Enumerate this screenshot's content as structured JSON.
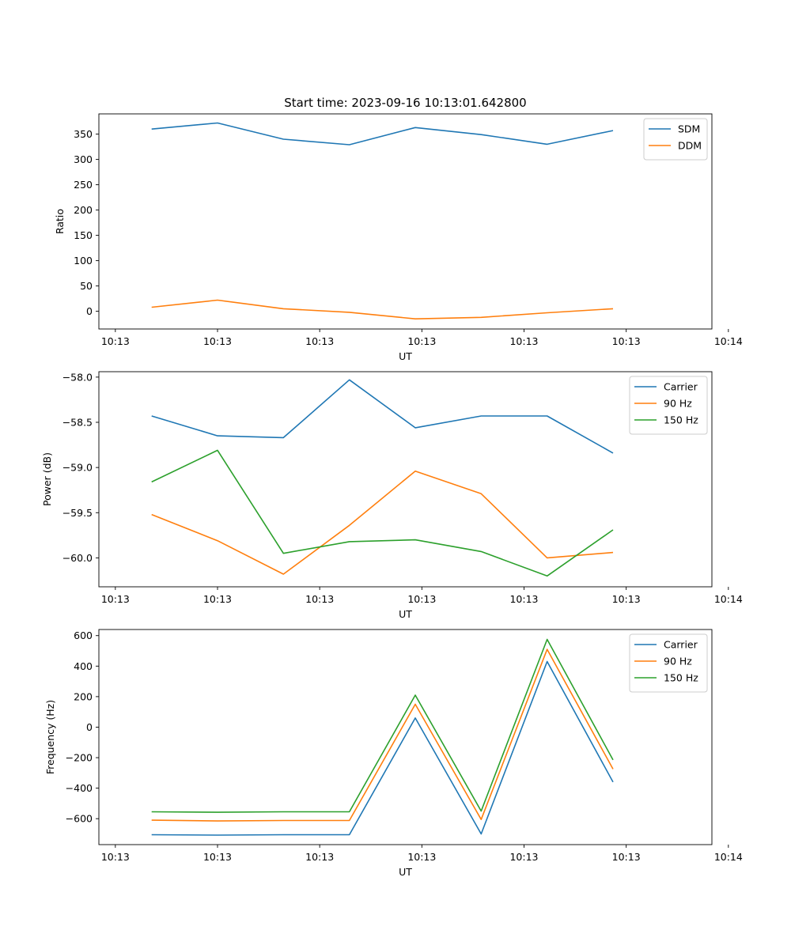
{
  "chart_data": [
    {
      "type": "line",
      "title": "Start time: 2023-09-16 10:13:01.642800",
      "xlabel": "UT",
      "ylabel": "Ratio",
      "x": [
        1,
        2,
        3,
        4,
        5,
        6,
        7,
        8
      ],
      "xlim": [
        0.2,
        9.5
      ],
      "xticks": [
        0.45,
        2.0,
        3.55,
        5.1,
        6.65,
        8.2,
        9.75
      ],
      "xtick_labels": [
        "10:13",
        "10:13",
        "10:13",
        "10:13",
        "10:13",
        "10:13",
        "10:14"
      ],
      "ylim": [
        -35,
        390
      ],
      "yticks": [
        0,
        50,
        100,
        150,
        200,
        250,
        300,
        350
      ],
      "ytick_labels": [
        "0",
        "50",
        "100",
        "150",
        "200",
        "250",
        "300",
        "350"
      ],
      "legend": "upper right",
      "grid": false,
      "series": [
        {
          "name": "SDM",
          "color": "#1f77b4",
          "values": [
            360,
            372,
            340,
            329,
            363,
            349,
            330,
            357
          ]
        },
        {
          "name": "DDM",
          "color": "#ff7f0e",
          "values": [
            8,
            22,
            5,
            -2,
            -15,
            -12,
            -3,
            5
          ]
        }
      ]
    },
    {
      "type": "line",
      "title": "",
      "xlabel": "UT",
      "ylabel": "Power (dB)",
      "x": [
        1,
        2,
        3,
        4,
        5,
        6,
        7,
        8
      ],
      "xlim": [
        0.2,
        9.5
      ],
      "xticks": [
        0.45,
        2.0,
        3.55,
        5.1,
        6.65,
        8.2,
        9.75
      ],
      "xtick_labels": [
        "10:13",
        "10:13",
        "10:13",
        "10:13",
        "10:13",
        "10:13",
        "10:14"
      ],
      "ylim": [
        -60.32,
        -57.94
      ],
      "yticks": [
        -60.0,
        -59.5,
        -59.0,
        -58.5,
        -58.0
      ],
      "ytick_labels": [
        "−60.0",
        "−59.5",
        "−59.0",
        "−58.5",
        "−58.0"
      ],
      "legend": "upper right",
      "grid": false,
      "series": [
        {
          "name": "Carrier",
          "color": "#1f77b4",
          "values": [
            -58.43,
            -58.65,
            -58.67,
            -58.03,
            -58.56,
            -58.43,
            -58.43,
            -58.84
          ]
        },
        {
          "name": "90 Hz",
          "color": "#ff7f0e",
          "values": [
            -59.52,
            -59.81,
            -60.18,
            -59.64,
            -59.04,
            -59.29,
            -60.0,
            -59.94
          ]
        },
        {
          "name": "150 Hz",
          "color": "#2ca02c",
          "values": [
            -59.16,
            -58.81,
            -59.95,
            -59.82,
            -59.8,
            -59.93,
            -60.2,
            -59.69
          ]
        }
      ]
    },
    {
      "type": "line",
      "title": "",
      "xlabel": "UT",
      "ylabel": "Frequency (Hz)",
      "x": [
        1,
        2,
        3,
        4,
        5,
        6,
        7,
        8
      ],
      "xlim": [
        0.2,
        9.5
      ],
      "xticks": [
        0.45,
        2.0,
        3.55,
        5.1,
        6.65,
        8.2,
        9.75
      ],
      "xtick_labels": [
        "10:13",
        "10:13",
        "10:13",
        "10:13",
        "10:13",
        "10:13",
        "10:14"
      ],
      "ylim": [
        -770,
        640
      ],
      "yticks": [
        -600,
        -400,
        -200,
        0,
        200,
        400,
        600
      ],
      "ytick_labels": [
        "−600",
        "−400",
        "−200",
        "0",
        "200",
        "400",
        "600"
      ],
      "legend": "upper right",
      "grid": false,
      "series": [
        {
          "name": "Carrier",
          "color": "#1f77b4",
          "values": [
            -705,
            -708,
            -705,
            -705,
            60,
            -700,
            430,
            -360
          ]
        },
        {
          "name": "90 Hz",
          "color": "#ff7f0e",
          "values": [
            -610,
            -615,
            -612,
            -612,
            150,
            -605,
            510,
            -275
          ]
        },
        {
          "name": "150 Hz",
          "color": "#2ca02c",
          "values": [
            -555,
            -558,
            -555,
            -555,
            210,
            -550,
            575,
            -215
          ]
        }
      ]
    }
  ]
}
